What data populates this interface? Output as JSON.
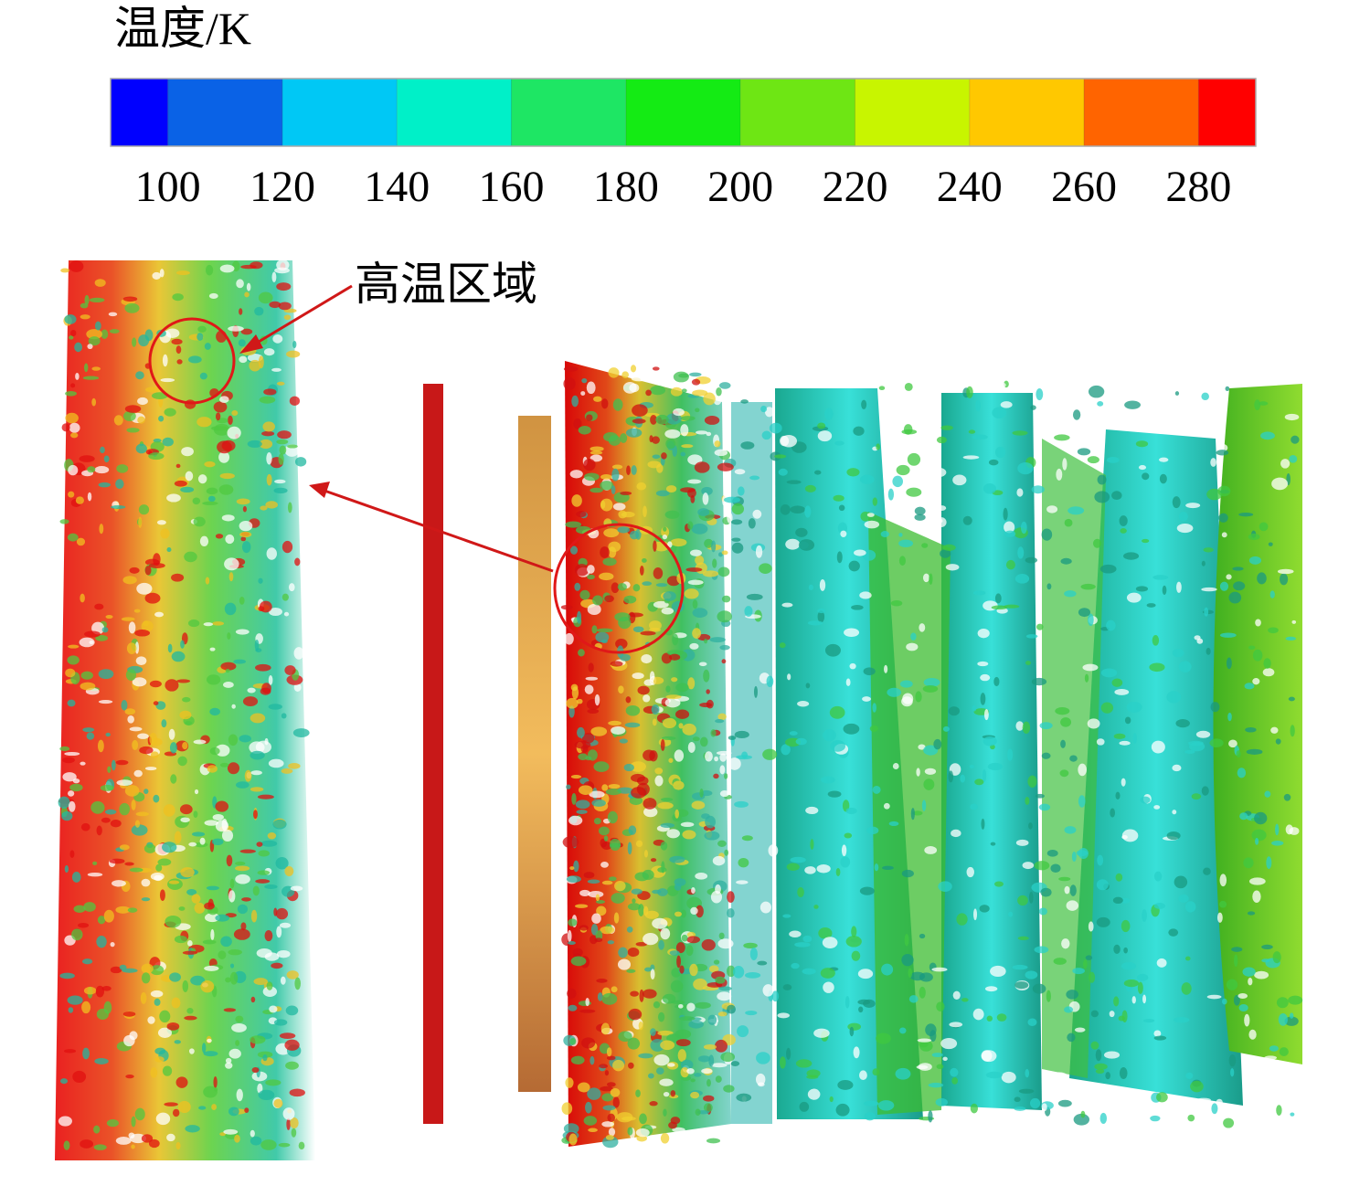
{
  "colorbar": {
    "title": "温度/K",
    "colors": [
      "#0000ff",
      "#0a62e6",
      "#00c8f5",
      "#00f0c8",
      "#1ee664",
      "#14eb14",
      "#6ee614",
      "#c8f500",
      "#ffc800",
      "#ff6400",
      "#ff0000"
    ],
    "range": [
      90,
      290
    ],
    "ticks": [
      100,
      120,
      140,
      160,
      180,
      200,
      220,
      240,
      260,
      280
    ]
  },
  "annotation": "高温区域"
}
